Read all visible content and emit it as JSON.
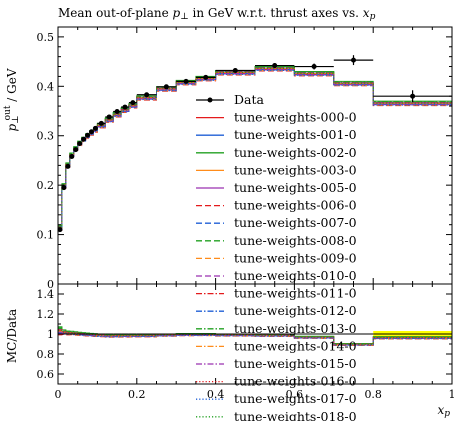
{
  "chart_data": {
    "type": "line",
    "title": "Mean out-of-plane p⊥ in GeV w.r.t. thrust axes vs. xp",
    "xlabel": "xp",
    "ylabel": "p⊥out / GeV",
    "ratio_ylabel": "MC/Data",
    "xlim": [
      0,
      1
    ],
    "ylim": [
      0,
      0.52
    ],
    "ratio_ylim": [
      0.5,
      1.5
    ],
    "x_ticks": [
      "0",
      "0.2",
      "0.4",
      "0.6",
      "0.8",
      "1"
    ],
    "y_ticks": [
      "0",
      "0.1",
      "0.2",
      "0.3",
      "0.4",
      "0.5"
    ],
    "ratio_ticks": [
      "0.6",
      "0.8",
      "1",
      "1.2",
      "1.4"
    ],
    "grid": false,
    "legend_position": "bottom-right (overflows into ratio panel)",
    "bin_edges": [
      0,
      0.01,
      0.02,
      0.03,
      0.04,
      0.05,
      0.06,
      0.07,
      0.08,
      0.09,
      0.1,
      0.12,
      0.14,
      0.16,
      0.18,
      0.2,
      0.25,
      0.3,
      0.35,
      0.4,
      0.5,
      0.6,
      0.7,
      0.8,
      1.0
    ],
    "data": {
      "name": "Data",
      "x": [
        0.005,
        0.015,
        0.025,
        0.035,
        0.045,
        0.055,
        0.065,
        0.075,
        0.085,
        0.095,
        0.11,
        0.13,
        0.15,
        0.17,
        0.19,
        0.225,
        0.275,
        0.325,
        0.375,
        0.45,
        0.55,
        0.65,
        0.75,
        0.9
      ],
      "y": [
        0.11,
        0.195,
        0.238,
        0.258,
        0.272,
        0.284,
        0.293,
        0.301,
        0.308,
        0.315,
        0.325,
        0.338,
        0.349,
        0.358,
        0.367,
        0.383,
        0.399,
        0.41,
        0.418,
        0.432,
        0.442,
        0.44,
        0.453,
        0.38
      ],
      "yerr": [
        0.004,
        0.003,
        0.003,
        0.003,
        0.003,
        0.003,
        0.003,
        0.003,
        0.003,
        0.003,
        0.003,
        0.003,
        0.003,
        0.003,
        0.003,
        0.003,
        0.003,
        0.003,
        0.004,
        0.004,
        0.005,
        0.006,
        0.01,
        0.012
      ]
    },
    "mc_base": [
      0.113,
      0.198,
      0.24,
      0.26,
      0.273,
      0.284,
      0.292,
      0.299,
      0.305,
      0.311,
      0.32,
      0.331,
      0.342,
      0.351,
      0.36,
      0.376,
      0.394,
      0.407,
      0.415,
      0.427,
      0.435,
      0.425,
      0.405,
      0.365
    ],
    "series": [
      {
        "name": "tune-weights-000-0",
        "color": "#e41a1c",
        "dash": "solid",
        "offset": 0.0
      },
      {
        "name": "tune-weights-001-0",
        "color": "#1f5fd6",
        "dash": "solid",
        "offset": 0.002
      },
      {
        "name": "tune-weights-002-0",
        "color": "#22a022",
        "dash": "solid",
        "offset": 0.005
      },
      {
        "name": "tune-weights-003-0",
        "color": "#ff8c1a",
        "dash": "solid",
        "offset": 0.001
      },
      {
        "name": "tune-weights-005-0",
        "color": "#9b30b0",
        "dash": "solid",
        "offset": -0.002
      },
      {
        "name": "tune-weights-006-0",
        "color": "#e41a1c",
        "dash": "dashed",
        "offset": -0.004
      },
      {
        "name": "tune-weights-007-0",
        "color": "#1f5fd6",
        "dash": "dashed",
        "offset": -0.001
      },
      {
        "name": "tune-weights-008-0",
        "color": "#22a022",
        "dash": "dashed",
        "offset": 0.003
      },
      {
        "name": "tune-weights-009-0",
        "color": "#ff8c1a",
        "dash": "dashed",
        "offset": -0.003
      },
      {
        "name": "tune-weights-010-0",
        "color": "#9b30b0",
        "dash": "dashed",
        "offset": 0.002
      },
      {
        "name": "tune-weights-011-0",
        "color": "#e41a1c",
        "dash": "dashdot",
        "offset": 0.001
      },
      {
        "name": "tune-weights-012-0",
        "color": "#1f5fd6",
        "dash": "dashdot",
        "offset": -0.002
      },
      {
        "name": "tune-weights-013-0",
        "color": "#22a022",
        "dash": "dashdot",
        "offset": 0.004
      },
      {
        "name": "tune-weights-014-0",
        "color": "#ff8c1a",
        "dash": "dashdot",
        "offset": 0.0
      },
      {
        "name": "tune-weights-015-0",
        "color": "#9b30b0",
        "dash": "dashdot",
        "offset": -0.001
      },
      {
        "name": "tune-weights-016-0",
        "color": "#e41a1c",
        "dash": "dotted",
        "offset": 0.002
      },
      {
        "name": "tune-weights-017-0",
        "color": "#1f5fd6",
        "dash": "dotted",
        "offset": -0.003
      },
      {
        "name": "tune-weights-018-0",
        "color": "#22a022",
        "dash": "dotted",
        "offset": 0.001
      }
    ],
    "ratio_band": {
      "color": "#ffff00",
      "x_range": [
        0.8,
        1.0
      ],
      "y_range": [
        0.975,
        1.03
      ]
    }
  }
}
